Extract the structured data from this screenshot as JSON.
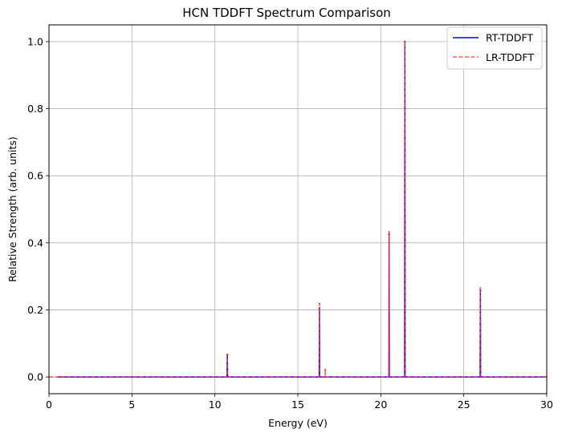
{
  "chart_data": {
    "type": "line",
    "title": "HCN TDDFT Spectrum Comparison",
    "xlabel": "Energy (eV)",
    "ylabel": "Relative Strength (arb. units)",
    "xlim": [
      0,
      30
    ],
    "ylim": [
      -0.05,
      1.05
    ],
    "xticks": [
      0,
      5,
      10,
      15,
      20,
      25,
      30
    ],
    "yticks": [
      0.0,
      0.2,
      0.4,
      0.6,
      0.8,
      1.0
    ],
    "xtick_labels": [
      "0",
      "5",
      "10",
      "15",
      "20",
      "25",
      "30"
    ],
    "ytick_labels": [
      "0.0",
      "0.2",
      "0.4",
      "0.6",
      "0.8",
      "1.0"
    ],
    "grid": true,
    "legend_position": "top-right",
    "series": [
      {
        "name": "RT-TDDFT",
        "color": "#0000ff",
        "style": "solid",
        "baseline_range": [
          0.5,
          30
        ],
        "peaks": [
          {
            "x": 10.75,
            "y": 0.065
          },
          {
            "x": 16.3,
            "y": 0.205
          },
          {
            "x": 20.5,
            "y": 0.425
          },
          {
            "x": 21.45,
            "y": 1.0
          },
          {
            "x": 26.0,
            "y": 0.258
          }
        ]
      },
      {
        "name": "LR-TDDFT",
        "color": "#ff3333",
        "style": "dashed",
        "baseline_range": [
          0,
          30
        ],
        "peaks": [
          {
            "x": 10.75,
            "y": 0.067
          },
          {
            "x": 16.3,
            "y": 0.218
          },
          {
            "x": 16.65,
            "y": 0.022
          },
          {
            "x": 20.5,
            "y": 0.432
          },
          {
            "x": 21.45,
            "y": 1.0
          },
          {
            "x": 26.0,
            "y": 0.265
          }
        ]
      }
    ]
  }
}
